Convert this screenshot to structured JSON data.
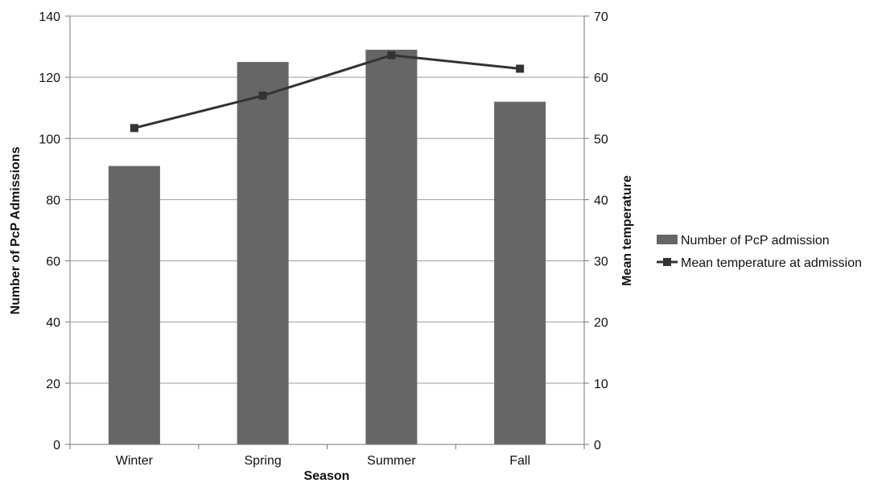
{
  "chart_data": {
    "type": "bar",
    "categories": [
      "Winter",
      "Spring",
      "Summer",
      "Fall"
    ],
    "series": [
      {
        "name": "Number of PcP admission",
        "type": "bar",
        "axis": "left",
        "values": [
          91,
          125,
          129,
          112
        ],
        "color": "#666666"
      },
      {
        "name": "Mean temperature at admission",
        "type": "line",
        "axis": "right",
        "values": [
          51.7,
          57.0,
          63.6,
          61.4
        ],
        "color": "#333333",
        "marker": "square"
      }
    ],
    "xlabel": "Season",
    "ylabel": "Number of PcP Admissions",
    "y2label": "Mean temperature",
    "ylim": [
      0,
      140
    ],
    "y2lim": [
      0,
      70
    ],
    "yticks": [
      "0",
      "20",
      "40",
      "60",
      "80",
      "100",
      "120",
      "140"
    ],
    "y2ticks": [
      "0",
      "10",
      "20",
      "30",
      "40",
      "50",
      "60",
      "70"
    ],
    "grid": true,
    "legend_position": "right"
  }
}
